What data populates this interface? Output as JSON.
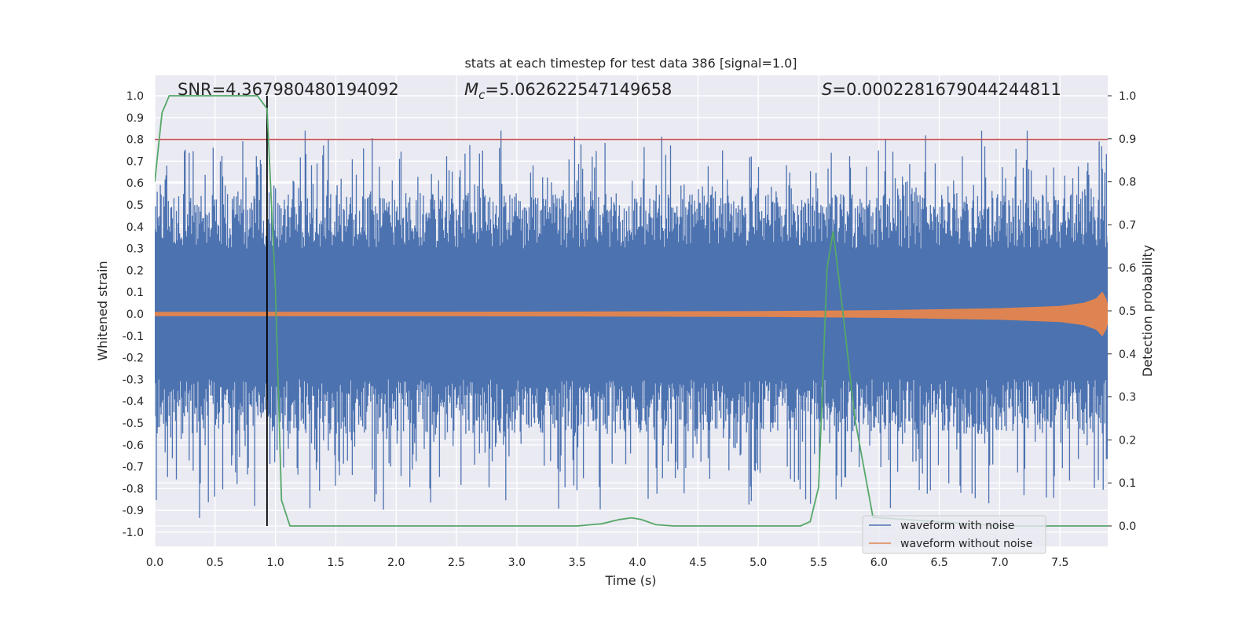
{
  "chart_data": {
    "type": "line",
    "title": "stats at each timestep for test data 386 [signal=1.0]",
    "xlabel": "Time (s)",
    "ylabel_left": "Whitened strain",
    "ylabel_right": "Detection probability",
    "xlim": [
      0.0,
      8.0
    ],
    "ylim_left": [
      -1.07,
      1.1
    ],
    "ylim_right": [
      -0.05,
      1.05
    ],
    "x_ticks": [
      "0.0",
      "0.5",
      "1.0",
      "1.5",
      "2.0",
      "2.5",
      "3.0",
      "3.5",
      "4.0",
      "4.5",
      "5.0",
      "5.5",
      "6.0",
      "6.5",
      "7.0",
      "7.5"
    ],
    "y_ticks_left": [
      "1.0",
      "0.9",
      "0.8",
      "0.7",
      "0.6",
      "0.5",
      "0.4",
      "0.3",
      "0.2",
      "0.1",
      "0.0",
      "-0.1",
      "-0.2",
      "-0.3",
      "-0.4",
      "-0.5",
      "-0.6",
      "-0.7",
      "-0.8",
      "-0.9",
      "-1.0"
    ],
    "y_ticks_right": [
      "1.0",
      "0.9",
      "0.8",
      "0.7",
      "0.6",
      "0.5",
      "0.4",
      "0.3",
      "0.2",
      "0.1",
      "0.0"
    ],
    "grid": true,
    "legend_position": "lower right",
    "stats": {
      "snr": "SNR=4.367980480194092",
      "mc_symbol": "M",
      "mc_sub": "c",
      "mc_value": "=5.062622547149658",
      "s_symbol": "S",
      "s_value": "=0.0002281679044244811"
    },
    "threshold": {
      "value": 0.8,
      "axis": "left",
      "color": "#c44e52"
    },
    "marker_time": 0.93,
    "series": [
      {
        "name": "waveform with noise",
        "axis": "left",
        "color": "#4c72b0",
        "envelope": {
          "max": 0.84,
          "min": -1.0
        }
      },
      {
        "name": "waveform without noise",
        "axis": "left",
        "color": "#dd8452",
        "x": [
          0.0,
          3.0,
          5.0,
          6.0,
          7.0,
          7.5,
          7.7,
          7.8,
          7.85,
          7.88,
          7.9
        ],
        "amplitude": [
          0.008,
          0.009,
          0.012,
          0.016,
          0.025,
          0.035,
          0.05,
          0.07,
          0.1,
          0.07,
          0.03
        ]
      },
      {
        "name": "",
        "axis": "right",
        "color": "#55a868",
        "x": [
          0.0,
          0.06,
          0.12,
          0.2,
          0.5,
          0.85,
          0.93,
          1.0,
          1.05,
          1.12,
          1.5,
          3.0,
          3.5,
          3.7,
          3.85,
          3.95,
          4.03,
          4.15,
          4.3,
          5.0,
          5.35,
          5.43,
          5.5,
          5.57,
          5.62,
          5.7,
          5.8,
          5.95,
          7.0,
          7.9
        ],
        "y": [
          0.8,
          0.96,
          1.0,
          1.0,
          1.0,
          1.0,
          0.97,
          0.55,
          0.06,
          0.0,
          0.0,
          0.0,
          0.0,
          0.005,
          0.015,
          0.019,
          0.015,
          0.003,
          0.0,
          0.0,
          0.0,
          0.01,
          0.09,
          0.6,
          0.685,
          0.5,
          0.25,
          0.02,
          0.0,
          0.0
        ]
      }
    ]
  }
}
